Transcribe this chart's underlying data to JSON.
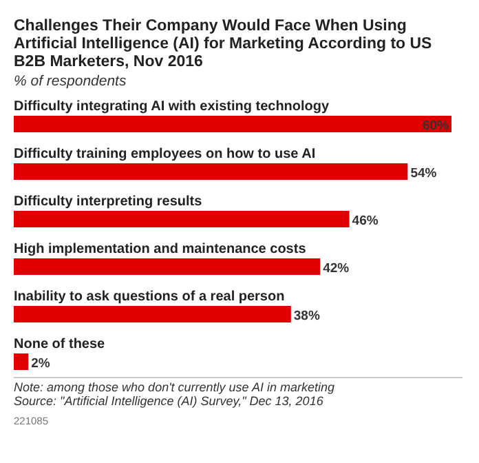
{
  "chart_data": {
    "type": "bar",
    "orientation": "horizontal",
    "title": "Challenges Their Company Would Face When Using Artificial Intelligence (AI) for Marketing According to US B2B Marketers, Nov 2016",
    "subtitle": "% of respondents",
    "categories": [
      "Difficulty integrating AI with existing technology",
      "Difficulty training employees on how to use AI",
      "Difficulty interpreting results",
      "High implementation and maintenance costs",
      "Inability to ask questions of a real person",
      "None of these"
    ],
    "values": [
      60,
      54,
      46,
      42,
      38,
      2
    ],
    "value_labels": [
      "60%",
      "54%",
      "46%",
      "42%",
      "38%",
      "2%"
    ],
    "color": "#e00000",
    "annotations": [
      "Note: among those who don't currently use AI in marketing",
      "Source: \"Artificial Intelligence (AI) Survey,\" Dec 13, 2016",
      "221085"
    ]
  }
}
